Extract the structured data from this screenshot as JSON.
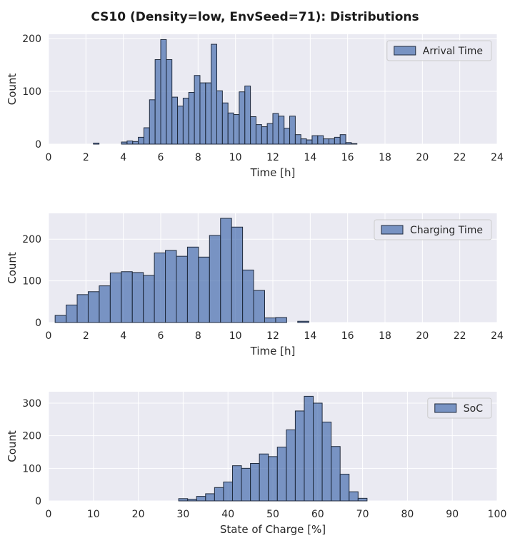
{
  "figure": {
    "title": "CS10 (Density=low, EnvSeed=71): Distributions"
  },
  "colors": {
    "plot_background": "#eaeaf2",
    "grid": "#ffffff",
    "bar_fill": "#4c72b0",
    "bar_edge": "#1f2a3c"
  },
  "chart_data": [
    {
      "type": "bar",
      "subtype": "histogram",
      "xlabel": "Time [h]",
      "ylabel": "Count",
      "xlim": [
        0,
        24
      ],
      "ylim": [
        0,
        208
      ],
      "xticks": [
        0,
        2,
        4,
        6,
        8,
        10,
        12,
        14,
        16,
        18,
        20,
        22,
        24
      ],
      "yticks": [
        0,
        100,
        200
      ],
      "legend": "top-right",
      "grid": true,
      "series": [
        {
          "name": "Arrival Time",
          "bin_start": 0.0,
          "bin_width": 0.3,
          "values": [
            0,
            0,
            0,
            0,
            0,
            0,
            0,
            0,
            2,
            0,
            0,
            0,
            0,
            4,
            6,
            5,
            13,
            31,
            84,
            160,
            198,
            160,
            89,
            72,
            87,
            98,
            130,
            116,
            116,
            189,
            101,
            78,
            59,
            56,
            99,
            110,
            52,
            37,
            33,
            39,
            58,
            53,
            30,
            53,
            18,
            10,
            8,
            16,
            16,
            10,
            10,
            13,
            18,
            3,
            1
          ]
        }
      ]
    },
    {
      "type": "bar",
      "subtype": "histogram",
      "xlabel": "Time [h]",
      "ylabel": "Count",
      "xlim": [
        0,
        24
      ],
      "ylim": [
        0,
        262
      ],
      "xticks": [
        0,
        2,
        4,
        6,
        8,
        10,
        12,
        14,
        16,
        18,
        20,
        22,
        24
      ],
      "yticks": [
        0,
        100,
        200
      ],
      "legend": "top-right",
      "grid": true,
      "series": [
        {
          "name": "Charging Time",
          "bin_start": 0.35,
          "bin_width": 0.59,
          "values": [
            17,
            42,
            67,
            74,
            88,
            119,
            122,
            120,
            113,
            167,
            173,
            159,
            181,
            157,
            209,
            250,
            229,
            126,
            77,
            11,
            12,
            0,
            3
          ]
        }
      ]
    },
    {
      "type": "bar",
      "subtype": "histogram",
      "xlabel": "State of Charge [%]",
      "ylabel": "Count",
      "xlim": [
        0,
        100
      ],
      "ylim": [
        0,
        335
      ],
      "xticks": [
        0,
        10,
        20,
        30,
        40,
        50,
        60,
        70,
        80,
        90,
        100
      ],
      "yticks": [
        0,
        100,
        200,
        300
      ],
      "legend": "top-right",
      "grid": true,
      "series": [
        {
          "name": "SoC",
          "bin_start": 29.0,
          "bin_width": 2.0,
          "values": [
            7,
            5,
            14,
            22,
            41,
            58,
            108,
            100,
            115,
            144,
            136,
            165,
            218,
            276,
            321,
            300,
            242,
            167,
            82,
            28,
            8
          ]
        }
      ]
    }
  ]
}
